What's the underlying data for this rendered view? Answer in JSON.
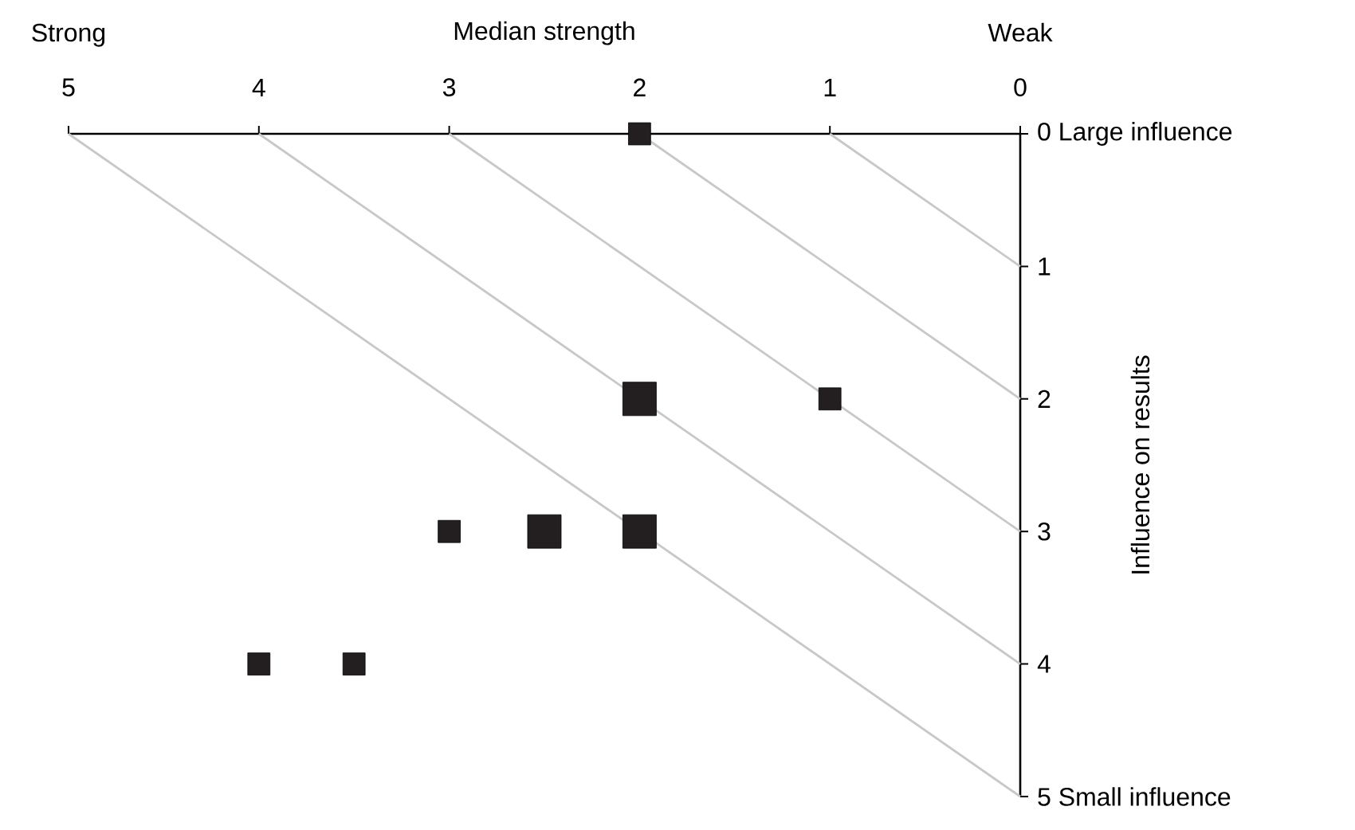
{
  "chart_data": {
    "type": "bubble",
    "xlabel": "Median strength",
    "ylabel": "Influence on results",
    "annotations": [
      "Strong",
      "Weak"
    ],
    "xlim": [
      5,
      0
    ],
    "ylim": [
      5,
      0
    ],
    "xticks": [
      5,
      4,
      3,
      2,
      1,
      0
    ],
    "yticks": [
      {
        "value": 0,
        "label": "0 Large influence"
      },
      1,
      2,
      3,
      4,
      {
        "value": 5,
        "label": "5 Small influence"
      }
    ],
    "marker": "none",
    "series": [
      {
        "marker": "square",
        "color": "#231f20",
        "x": [
          2,
          2,
          1,
          3,
          2.5,
          2,
          4,
          3.5
        ],
        "values": [
          0,
          2,
          2,
          3,
          3,
          3,
          4,
          4
        ],
        "sizes": [
          0.44,
          1,
          0.44,
          0.44,
          1,
          1,
          0.44,
          0.44
        ]
      },
      {
        "type": "line",
        "color": "#c8c8c8",
        "line_style": "solid",
        "x": [
          5,
          0
        ],
        "values": [
          0,
          5
        ]
      },
      {
        "type": "line",
        "color": "#c8c8c8",
        "line_style": "solid",
        "x": [
          4,
          0
        ],
        "values": [
          0,
          4
        ]
      },
      {
        "type": "line",
        "color": "#c8c8c8",
        "line_style": "solid",
        "x": [
          3,
          0
        ],
        "values": [
          0,
          3
        ]
      },
      {
        "type": "line",
        "color": "#c8c8c8",
        "line_style": "solid",
        "x": [
          2,
          0
        ],
        "values": [
          0,
          2
        ]
      },
      {
        "type": "line",
        "color": "#c8c8c8",
        "line_style": "solid",
        "x": [
          1,
          0
        ],
        "values": [
          0,
          1
        ]
      }
    ]
  }
}
